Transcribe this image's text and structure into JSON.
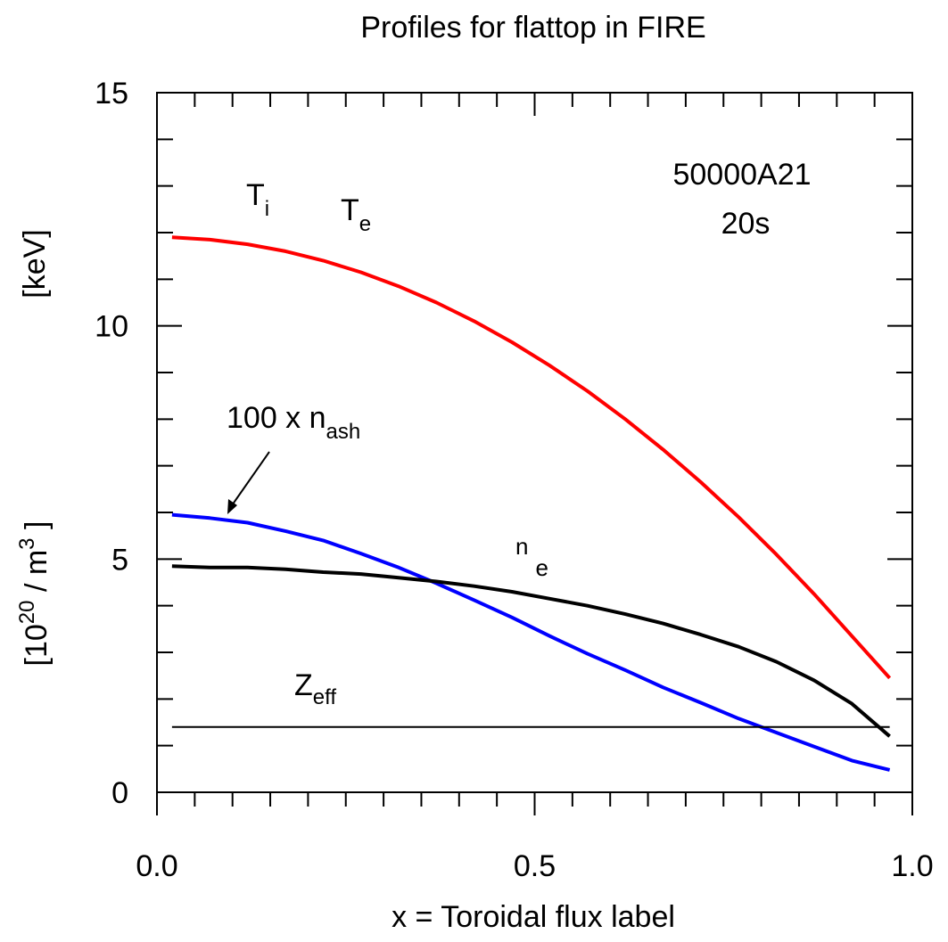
{
  "chart_data": {
    "type": "line",
    "title": "Profiles for flattop in FIRE",
    "xlabel": "x = Toroidal flux label",
    "ylabel_top": "[keV]",
    "ylabel_bottom": {
      "base": "[10",
      "exp": "20",
      "mid": " / m",
      "exp2": "3",
      "end": " ]"
    },
    "xlim": [
      0,
      1
    ],
    "ylim": [
      0,
      15
    ],
    "x_ticks": [
      "0.0",
      "0.5",
      "1.0"
    ],
    "y_ticks": [
      "0",
      "5",
      "10",
      "15"
    ],
    "annotations": {
      "run_id": "50000A21",
      "time": "20s",
      "ti": {
        "main": "T",
        "sub": "i"
      },
      "te": {
        "main": "T",
        "sub": "e"
      },
      "ne": {
        "main": "n",
        "sub": "e"
      },
      "nash": {
        "main": "100 x n",
        "sub": "ash"
      },
      "zeff": {
        "main": "Z",
        "sub": "eff"
      }
    },
    "series": [
      {
        "id": "T",
        "color": "#ff0000",
        "width": 4,
        "points": [
          [
            0.02,
            11.9
          ],
          [
            0.07,
            11.85
          ],
          [
            0.12,
            11.75
          ],
          [
            0.17,
            11.6
          ],
          [
            0.22,
            11.4
          ],
          [
            0.27,
            11.15
          ],
          [
            0.32,
            10.85
          ],
          [
            0.37,
            10.5
          ],
          [
            0.42,
            10.1
          ],
          [
            0.47,
            9.65
          ],
          [
            0.52,
            9.15
          ],
          [
            0.57,
            8.6
          ],
          [
            0.62,
            8.0
          ],
          [
            0.67,
            7.35
          ],
          [
            0.72,
            6.65
          ],
          [
            0.77,
            5.9
          ],
          [
            0.82,
            5.1
          ],
          [
            0.87,
            4.25
          ],
          [
            0.92,
            3.35
          ],
          [
            0.97,
            2.45
          ]
        ]
      },
      {
        "id": "n_ash",
        "color": "#0000ff",
        "width": 4,
        "points": [
          [
            0.02,
            5.95
          ],
          [
            0.07,
            5.88
          ],
          [
            0.12,
            5.78
          ],
          [
            0.17,
            5.6
          ],
          [
            0.22,
            5.4
          ],
          [
            0.27,
            5.12
          ],
          [
            0.32,
            4.82
          ],
          [
            0.37,
            4.48
          ],
          [
            0.42,
            4.12
          ],
          [
            0.47,
            3.75
          ],
          [
            0.52,
            3.35
          ],
          [
            0.57,
            2.97
          ],
          [
            0.62,
            2.62
          ],
          [
            0.67,
            2.25
          ],
          [
            0.72,
            1.92
          ],
          [
            0.77,
            1.58
          ],
          [
            0.82,
            1.28
          ],
          [
            0.87,
            0.98
          ],
          [
            0.92,
            0.68
          ],
          [
            0.97,
            0.48
          ]
        ]
      },
      {
        "id": "n_e",
        "color": "#000000",
        "width": 4,
        "points": [
          [
            0.02,
            4.85
          ],
          [
            0.07,
            4.82
          ],
          [
            0.12,
            4.82
          ],
          [
            0.17,
            4.78
          ],
          [
            0.22,
            4.72
          ],
          [
            0.27,
            4.68
          ],
          [
            0.32,
            4.6
          ],
          [
            0.37,
            4.52
          ],
          [
            0.42,
            4.42
          ],
          [
            0.47,
            4.3
          ],
          [
            0.52,
            4.15
          ],
          [
            0.57,
            4.0
          ],
          [
            0.62,
            3.82
          ],
          [
            0.67,
            3.62
          ],
          [
            0.72,
            3.38
          ],
          [
            0.77,
            3.12
          ],
          [
            0.82,
            2.8
          ],
          [
            0.87,
            2.4
          ],
          [
            0.92,
            1.9
          ],
          [
            0.97,
            1.2
          ]
        ]
      },
      {
        "id": "Z_eff",
        "color": "#000000",
        "width": 2,
        "points": [
          [
            0.02,
            1.4
          ],
          [
            0.52,
            1.4
          ],
          [
            0.97,
            1.4
          ]
        ]
      }
    ]
  }
}
